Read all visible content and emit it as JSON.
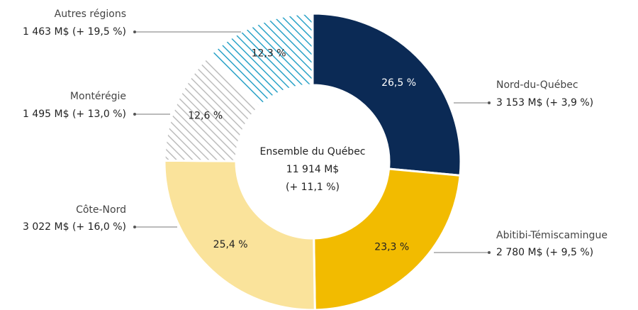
{
  "chart_data": {
    "type": "pie",
    "donut": true,
    "categories": [
      "Nord-du-Québec",
      "Abitibi-Témiscamingue",
      "Côte-Nord",
      "Montérégie",
      "Autres régions"
    ],
    "values": [
      26.5,
      23.3,
      25.4,
      12.6,
      12.3
    ],
    "value_labels": [
      "26,5 %",
      "23,3 %",
      "25,4 %",
      "12,6 %",
      "12,3 %"
    ],
    "amount_labels": [
      "3 153 M$ (+ 3,9 %)",
      "2 780 M$ (+ 9,5 %)",
      "3 022 M$ (+ 16,0 %)",
      "1 495 M$ (+ 13,0 %)",
      "1 463 M$ (+ 19,5 %)"
    ],
    "colors": [
      "#0b2a55",
      "#f2bb00",
      "#fae39b",
      "#bdbdbd",
      "#2ba3c8"
    ],
    "hatched": [
      false,
      false,
      false,
      true,
      true
    ],
    "center_text": [
      "Ensemble du Québec",
      "11 914 M$",
      "(+ 11,1 %)"
    ]
  }
}
